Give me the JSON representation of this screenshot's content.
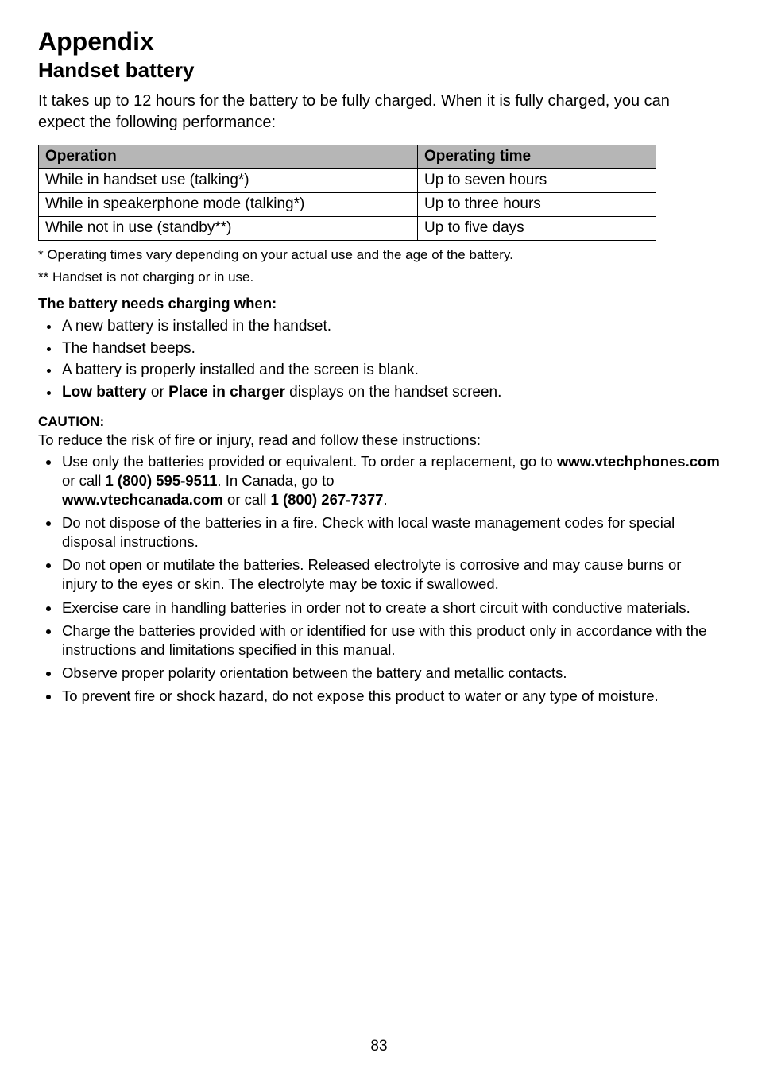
{
  "page": {
    "appendix_title": "Appendix",
    "section_title": "Handset battery",
    "intro": "It takes up to 12 hours for the battery to be fully charged. When it is fully charged, you can expect the following performance:",
    "page_number": "83"
  },
  "table": {
    "header_operation": "Operation",
    "header_time": "Operating time",
    "rows": [
      {
        "operation": "While in handset use (talking*)",
        "time": "Up to seven hours"
      },
      {
        "operation": "While in speakerphone mode (talking*)",
        "time": "Up to three hours"
      },
      {
        "operation": "While not in use (standby**)",
        "time": "Up to five days"
      }
    ]
  },
  "footnotes": {
    "f1": "* Operating times vary depending on your actual use and the age of the battery.",
    "f2": "** Handset is not charging or in use."
  },
  "charging": {
    "heading": "The battery needs charging when:",
    "items": {
      "i0": "A new battery is installed in the handset.",
      "i1": "The handset beeps.",
      "i2": "A battery is properly installed and the screen is blank."
    },
    "i3_strong1": "Low battery",
    "i3_mid": " or ",
    "i3_strong2": "Place in charger",
    "i3_tail": " displays on the handset screen."
  },
  "caution": {
    "label": "CAUTION:",
    "intro": "To reduce the risk of fire or injury, read and follow these instructions:",
    "c0_pre": "Use only the batteries provided or equivalent. To order a replacement, go to ",
    "c0_b1": "www.vtechphones.com",
    "c0_mid1": " or call ",
    "c0_b2": "1 (800) 595-9511",
    "c0_mid2": ". In Canada, go to ",
    "c0_b3": "www.vtechcanada.com",
    "c0_mid3": " or call ",
    "c0_b4": "1 (800) 267-7377",
    "c0_tail": ".",
    "c1": "Do not dispose of the batteries in a fire. Check with local waste management codes for special disposal instructions.",
    "c2": "Do not open or mutilate the batteries. Released electrolyte is corrosive and may cause burns or injury to the eyes or skin. The electrolyte may be toxic if swallowed.",
    "c3": "Exercise care in handling batteries in order not to create a short circuit with conductive materials.",
    "c4": "Charge the batteries provided with or identified for use with this product only in accordance with the instructions and limitations specified in this manual.",
    "c5": "Observe proper polarity orientation between the battery and metallic contacts.",
    "c6": "To prevent fire or shock hazard, do not expose this product to water or any type of moisture."
  }
}
